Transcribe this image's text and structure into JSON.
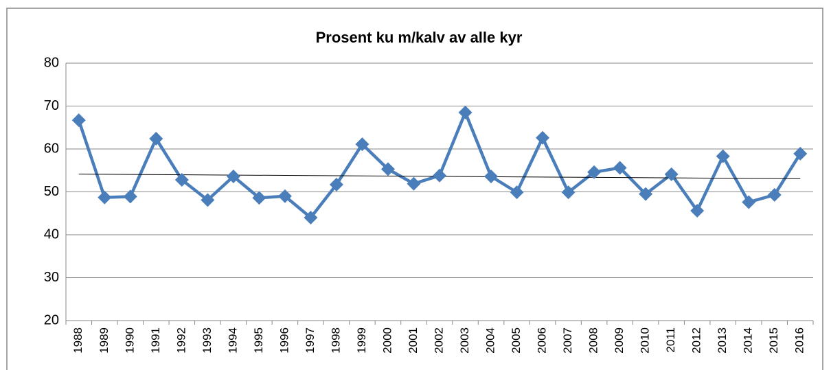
{
  "chart_data": {
    "type": "line",
    "title": "Prosent ku m/kalv av alle kyr",
    "categories": [
      "1988",
      "1989",
      "1990",
      "1991",
      "1992",
      "1993",
      "1994",
      "1995",
      "1996",
      "1997",
      "1998",
      "1999",
      "2000",
      "2001",
      "2002",
      "2003",
      "2004",
      "2005",
      "2006",
      "2007",
      "2008",
      "2009",
      "2010",
      "2011",
      "2012",
      "2013",
      "2014",
      "2015",
      "2016"
    ],
    "series": [
      {
        "color": "#4a7ebb",
        "values": [
          66.7,
          48.7,
          48.9,
          62.4,
          52.8,
          48.1,
          53.6,
          48.6,
          49.0,
          44.0,
          51.7,
          61.1,
          55.3,
          51.9,
          53.8,
          68.5,
          53.6,
          49.9,
          62.6,
          49.9,
          54.6,
          55.6,
          49.5,
          54.1,
          45.6,
          58.3,
          47.6,
          49.3,
          58.9
        ]
      }
    ],
    "ylim": [
      20,
      80
    ],
    "yticks": [
      20,
      30,
      40,
      50,
      60,
      70,
      80
    ],
    "grid": true,
    "trendline": "linear",
    "trendline_color": "#000000"
  }
}
